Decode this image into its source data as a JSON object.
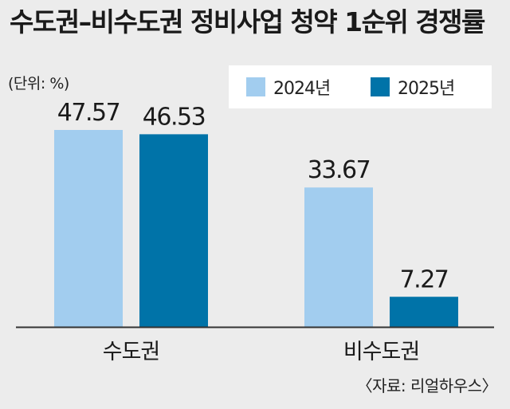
{
  "chart_data": {
    "type": "bar",
    "title": "수도권–비수도권 정비사업 청약 1순위 경쟁률",
    "unit_label": "(단위: %)",
    "categories": [
      "수도권",
      "비수도권"
    ],
    "series": [
      {
        "name": "2024년",
        "values": [
          47.57,
          33.67
        ],
        "color": "#a2cdef"
      },
      {
        "name": "2025년",
        "values": [
          46.53,
          7.27
        ],
        "color": "#0073a8"
      }
    ],
    "data_labels": [
      [
        "47.57",
        "33.67"
      ],
      [
        "46.53",
        "7.27"
      ]
    ],
    "ylim": [
      0,
      52
    ],
    "legend_position": "top-right",
    "grid": false,
    "source": "〈자료: 리얼하우스〉"
  }
}
